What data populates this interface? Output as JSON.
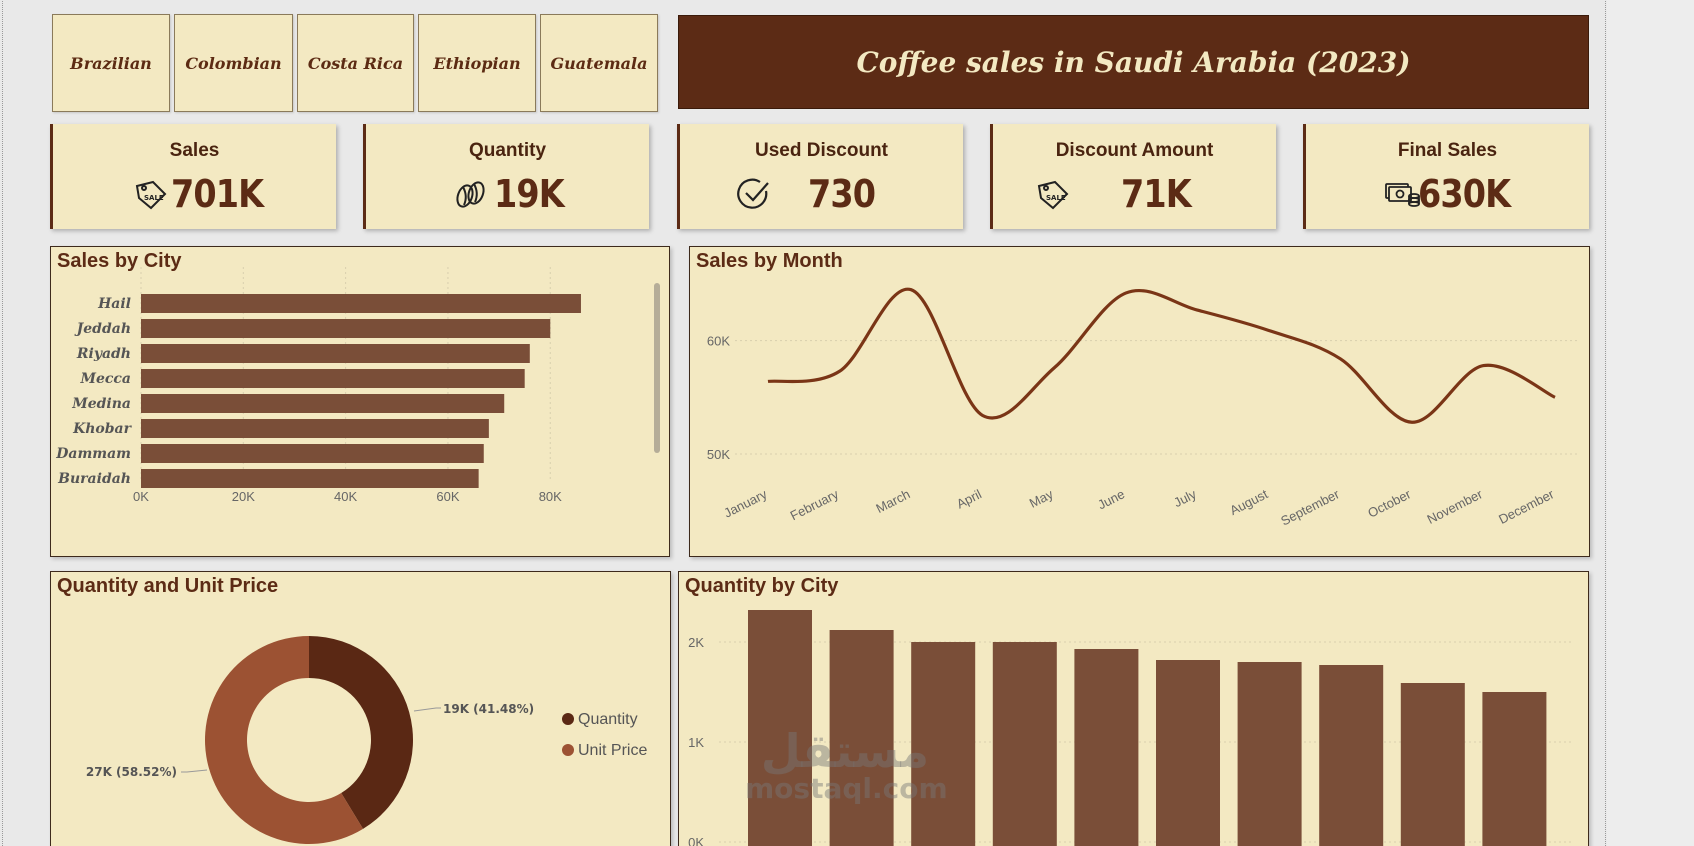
{
  "title": "Coffee sales in Saudi Arabia (2023)",
  "slicers": [
    "Brazilian",
    "Colombian",
    "Costa Rica",
    "Ethiopian",
    "Guatemala"
  ],
  "kpis": [
    {
      "label": "Sales",
      "value": "701K",
      "icon": "sale-tag-icon"
    },
    {
      "label": "Quantity",
      "value": "19K",
      "icon": "coffee-bean-icon"
    },
    {
      "label": "Used Discount",
      "value": "730",
      "icon": "checkmark-icon"
    },
    {
      "label": "Discount Amount",
      "value": "71K",
      "icon": "sale-tag-icon"
    },
    {
      "label": "Final Sales",
      "value": "630K",
      "icon": "money-coins-icon"
    }
  ],
  "colors": {
    "brown_dark": "#5c2b15",
    "bar": "#7a4e38",
    "line": "#7a3516",
    "panel_bg": "#f3e9c2",
    "donut_quantity": "#5a2814",
    "donut_price": "#9c5233"
  },
  "chart_data": [
    {
      "type": "bar",
      "orientation": "horizontal",
      "title": "Sales by City",
      "categories": [
        "Hail",
        "Jeddah",
        "Riyadh",
        "Mecca",
        "Medina",
        "Khobar",
        "Dammam",
        "Buraidah"
      ],
      "values": [
        86000,
        80000,
        76000,
        75000,
        71000,
        68000,
        67000,
        66000
      ],
      "x_ticks": [
        "0K",
        "20K",
        "40K",
        "60K",
        "80K"
      ],
      "xlim": [
        0,
        95000
      ],
      "grid": true
    },
    {
      "type": "line",
      "title": "Sales by Month",
      "categories": [
        "January",
        "February",
        "March",
        "April",
        "May",
        "June",
        "July",
        "August",
        "September",
        "October",
        "November",
        "December"
      ],
      "values": [
        56400,
        57300,
        64500,
        53400,
        57600,
        64200,
        62700,
        60900,
        58400,
        52800,
        57800,
        55000
      ],
      "y_ticks": [
        "50K",
        "60K"
      ],
      "ylim": [
        48500,
        66500
      ],
      "grid": true
    },
    {
      "type": "pie",
      "donut": true,
      "title": "Quantity and Unit Price",
      "labels": [
        "Quantity",
        "Unit Price"
      ],
      "values": [
        19000,
        27000
      ],
      "percents": [
        41.48,
        58.52
      ],
      "data_labels": [
        "19K (41.48%)",
        "27K (58.52%)"
      ],
      "legend": "right"
    },
    {
      "type": "bar",
      "title": "Quantity by City",
      "values": [
        2320,
        2120,
        2000,
        2000,
        1930,
        1820,
        1800,
        1770,
        1590,
        1500
      ],
      "y_ticks": [
        "0K",
        "1K",
        "2K"
      ],
      "ylim": [
        0,
        2500
      ],
      "grid": true
    }
  ],
  "watermark": {
    "ar": "مستقل",
    "en": "mostaql.com"
  }
}
